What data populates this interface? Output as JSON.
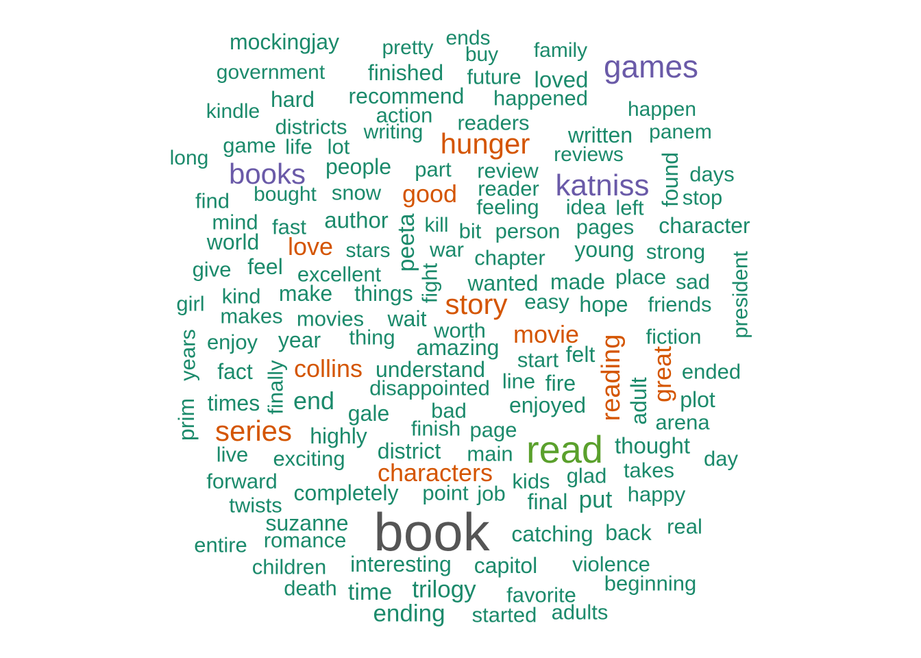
{
  "colors": {
    "tier1": "#555555",
    "tier2": "#5aa02c",
    "tier3": "#6a5aa8",
    "tier4": "#d45500",
    "tier5": "#1b8a6b"
  },
  "words": [
    {
      "text": "book",
      "tier": "tier1"
    },
    {
      "text": "read",
      "tier": "tier2"
    },
    {
      "text": "games",
      "tier": "tier3"
    },
    {
      "text": "katniss",
      "tier": "tier3"
    },
    {
      "text": "books",
      "tier": "tier3"
    },
    {
      "text": "hunger",
      "tier": "tier4"
    },
    {
      "text": "story",
      "tier": "tier4"
    },
    {
      "text": "series",
      "tier": "tier4"
    },
    {
      "text": "characters",
      "tier": "tier4"
    },
    {
      "text": "good",
      "tier": "tier4"
    },
    {
      "text": "love",
      "tier": "tier4"
    },
    {
      "text": "movie",
      "tier": "tier4"
    },
    {
      "text": "collins",
      "tier": "tier4"
    },
    {
      "text": "reading",
      "tier": "tier4"
    },
    {
      "text": "great",
      "tier": "tier4"
    },
    {
      "text": "mockingjay",
      "tier": "tier5"
    },
    {
      "text": "pretty",
      "tier": "tier5"
    },
    {
      "text": "ends",
      "tier": "tier5"
    },
    {
      "text": "buy",
      "tier": "tier5"
    },
    {
      "text": "family",
      "tier": "tier5"
    },
    {
      "text": "government",
      "tier": "tier5"
    },
    {
      "text": "finished",
      "tier": "tier5"
    },
    {
      "text": "future",
      "tier": "tier5"
    },
    {
      "text": "loved",
      "tier": "tier5"
    },
    {
      "text": "hard",
      "tier": "tier5"
    },
    {
      "text": "recommend",
      "tier": "tier5"
    },
    {
      "text": "happened",
      "tier": "tier5"
    },
    {
      "text": "kindle",
      "tier": "tier5"
    },
    {
      "text": "action",
      "tier": "tier5"
    },
    {
      "text": "happen",
      "tier": "tier5"
    },
    {
      "text": "districts",
      "tier": "tier5"
    },
    {
      "text": "readers",
      "tier": "tier5"
    },
    {
      "text": "writing",
      "tier": "tier5"
    },
    {
      "text": "written",
      "tier": "tier5"
    },
    {
      "text": "panem",
      "tier": "tier5"
    },
    {
      "text": "game",
      "tier": "tier5"
    },
    {
      "text": "life",
      "tier": "tier5"
    },
    {
      "text": "lot",
      "tier": "tier5"
    },
    {
      "text": "reviews",
      "tier": "tier5"
    },
    {
      "text": "long",
      "tier": "tier5"
    },
    {
      "text": "people",
      "tier": "tier5"
    },
    {
      "text": "part",
      "tier": "tier5"
    },
    {
      "text": "review",
      "tier": "tier5"
    },
    {
      "text": "found",
      "tier": "tier5",
      "v": true
    },
    {
      "text": "days",
      "tier": "tier5"
    },
    {
      "text": "bought",
      "tier": "tier5"
    },
    {
      "text": "snow",
      "tier": "tier5"
    },
    {
      "text": "reader",
      "tier": "tier5"
    },
    {
      "text": "find",
      "tier": "tier5"
    },
    {
      "text": "stop",
      "tier": "tier5"
    },
    {
      "text": "feeling",
      "tier": "tier5"
    },
    {
      "text": "idea",
      "tier": "tier5"
    },
    {
      "text": "left",
      "tier": "tier5"
    },
    {
      "text": "author",
      "tier": "tier5"
    },
    {
      "text": "peeta",
      "tier": "tier5",
      "v": true
    },
    {
      "text": "mind",
      "tier": "tier5"
    },
    {
      "text": "fast",
      "tier": "tier5"
    },
    {
      "text": "kill",
      "tier": "tier5"
    },
    {
      "text": "pages",
      "tier": "tier5"
    },
    {
      "text": "character",
      "tier": "tier5"
    },
    {
      "text": "bit",
      "tier": "tier5"
    },
    {
      "text": "person",
      "tier": "tier5"
    },
    {
      "text": "world",
      "tier": "tier5"
    },
    {
      "text": "stars",
      "tier": "tier5"
    },
    {
      "text": "war",
      "tier": "tier5"
    },
    {
      "text": "young",
      "tier": "tier5"
    },
    {
      "text": "strong",
      "tier": "tier5"
    },
    {
      "text": "chapter",
      "tier": "tier5"
    },
    {
      "text": "president",
      "tier": "tier5",
      "v": true
    },
    {
      "text": "give",
      "tier": "tier5"
    },
    {
      "text": "feel",
      "tier": "tier5"
    },
    {
      "text": "excellent",
      "tier": "tier5"
    },
    {
      "text": "fight",
      "tier": "tier5",
      "v": true
    },
    {
      "text": "place",
      "tier": "tier5"
    },
    {
      "text": "wanted",
      "tier": "tier5"
    },
    {
      "text": "made",
      "tier": "tier5"
    },
    {
      "text": "sad",
      "tier": "tier5"
    },
    {
      "text": "kind",
      "tier": "tier5"
    },
    {
      "text": "make",
      "tier": "tier5"
    },
    {
      "text": "things",
      "tier": "tier5"
    },
    {
      "text": "girl",
      "tier": "tier5"
    },
    {
      "text": "easy",
      "tier": "tier5"
    },
    {
      "text": "hope",
      "tier": "tier5"
    },
    {
      "text": "friends",
      "tier": "tier5"
    },
    {
      "text": "makes",
      "tier": "tier5"
    },
    {
      "text": "movies",
      "tier": "tier5"
    },
    {
      "text": "wait",
      "tier": "tier5"
    },
    {
      "text": "worth",
      "tier": "tier5"
    },
    {
      "text": "enjoy",
      "tier": "tier5"
    },
    {
      "text": "year",
      "tier": "tier5"
    },
    {
      "text": "thing",
      "tier": "tier5"
    },
    {
      "text": "fiction",
      "tier": "tier5"
    },
    {
      "text": "years",
      "tier": "tier5",
      "v": true
    },
    {
      "text": "amazing",
      "tier": "tier5"
    },
    {
      "text": "felt",
      "tier": "tier5"
    },
    {
      "text": "fact",
      "tier": "tier5"
    },
    {
      "text": "finally",
      "tier": "tier5",
      "v": true
    },
    {
      "text": "understand",
      "tier": "tier5"
    },
    {
      "text": "start",
      "tier": "tier5"
    },
    {
      "text": "ended",
      "tier": "tier5"
    },
    {
      "text": "line",
      "tier": "tier5"
    },
    {
      "text": "fire",
      "tier": "tier5"
    },
    {
      "text": "adult",
      "tier": "tier5",
      "v": true
    },
    {
      "text": "disappointed",
      "tier": "tier5"
    },
    {
      "text": "times",
      "tier": "tier5"
    },
    {
      "text": "end",
      "tier": "tier5"
    },
    {
      "text": "plot",
      "tier": "tier5"
    },
    {
      "text": "prim",
      "tier": "tier5",
      "v": true
    },
    {
      "text": "enjoyed",
      "tier": "tier5"
    },
    {
      "text": "gale",
      "tier": "tier5"
    },
    {
      "text": "bad",
      "tier": "tier5"
    },
    {
      "text": "arena",
      "tier": "tier5"
    },
    {
      "text": "finish",
      "tier": "tier5"
    },
    {
      "text": "page",
      "tier": "tier5"
    },
    {
      "text": "highly",
      "tier": "tier5"
    },
    {
      "text": "thought",
      "tier": "tier5"
    },
    {
      "text": "live",
      "tier": "tier5"
    },
    {
      "text": "district",
      "tier": "tier5"
    },
    {
      "text": "main",
      "tier": "tier5"
    },
    {
      "text": "day",
      "tier": "tier5"
    },
    {
      "text": "exciting",
      "tier": "tier5"
    },
    {
      "text": "takes",
      "tier": "tier5"
    },
    {
      "text": "glad",
      "tier": "tier5"
    },
    {
      "text": "forward",
      "tier": "tier5"
    },
    {
      "text": "kids",
      "tier": "tier5"
    },
    {
      "text": "completely",
      "tier": "tier5"
    },
    {
      "text": "point",
      "tier": "tier5"
    },
    {
      "text": "job",
      "tier": "tier5"
    },
    {
      "text": "happy",
      "tier": "tier5"
    },
    {
      "text": "twists",
      "tier": "tier5"
    },
    {
      "text": "final",
      "tier": "tier5"
    },
    {
      "text": "put",
      "tier": "tier5"
    },
    {
      "text": "suzanne",
      "tier": "tier5"
    },
    {
      "text": "real",
      "tier": "tier5"
    },
    {
      "text": "catching",
      "tier": "tier5"
    },
    {
      "text": "back",
      "tier": "tier5"
    },
    {
      "text": "entire",
      "tier": "tier5"
    },
    {
      "text": "romance",
      "tier": "tier5"
    },
    {
      "text": "children",
      "tier": "tier5"
    },
    {
      "text": "interesting",
      "tier": "tier5"
    },
    {
      "text": "capitol",
      "tier": "tier5"
    },
    {
      "text": "violence",
      "tier": "tier5"
    },
    {
      "text": "beginning",
      "tier": "tier5"
    },
    {
      "text": "death",
      "tier": "tier5"
    },
    {
      "text": "time",
      "tier": "tier5"
    },
    {
      "text": "trilogy",
      "tier": "tier5"
    },
    {
      "text": "favorite",
      "tier": "tier5"
    },
    {
      "text": "ending",
      "tier": "tier5"
    },
    {
      "text": "started",
      "tier": "tier5"
    },
    {
      "text": "adults",
      "tier": "tier5"
    }
  ]
}
